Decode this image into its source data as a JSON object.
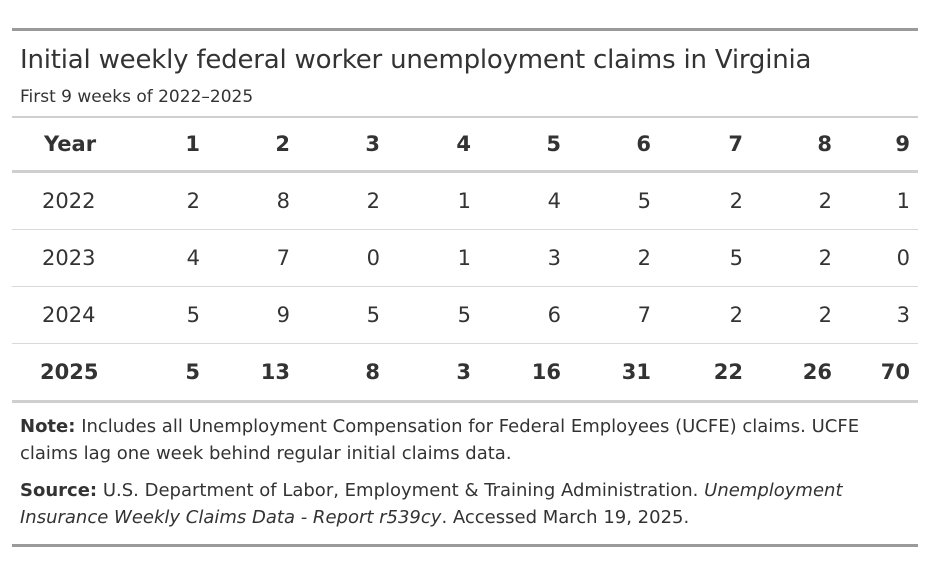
{
  "title": "Initial weekly federal worker unemployment claims in Virginia",
  "subtitle": "First 9 weeks of 2022–2025",
  "table": {
    "header": [
      "Year",
      "1",
      "2",
      "3",
      "4",
      "5",
      "6",
      "7",
      "8",
      "9"
    ],
    "rows": [
      {
        "year": "2022",
        "values": [
          "2",
          "8",
          "2",
          "1",
          "4",
          "5",
          "2",
          "2",
          "1"
        ],
        "highlight": false
      },
      {
        "year": "2023",
        "values": [
          "4",
          "7",
          "0",
          "1",
          "3",
          "2",
          "5",
          "2",
          "0"
        ],
        "highlight": false
      },
      {
        "year": "2024",
        "values": [
          "5",
          "9",
          "5",
          "5",
          "6",
          "7",
          "2",
          "2",
          "3"
        ],
        "highlight": false
      },
      {
        "year": "2025",
        "values": [
          "5",
          "13",
          "8",
          "3",
          "16",
          "31",
          "22",
          "26",
          "70"
        ],
        "highlight": true
      }
    ]
  },
  "note": {
    "label": "Note:",
    "text": "Includes all Unemployment Compensation for Federal Employees (UCFE) claims. UCFE claims lag one week behind regular initial claims data."
  },
  "source": {
    "label": "Source:",
    "text_before": "U.S. Department of Labor, Employment & Training Administration.",
    "italic": "Unemployment Insurance Weekly Claims Data - Report r539cy",
    "text_after": ". Accessed March 19, 2025."
  }
}
